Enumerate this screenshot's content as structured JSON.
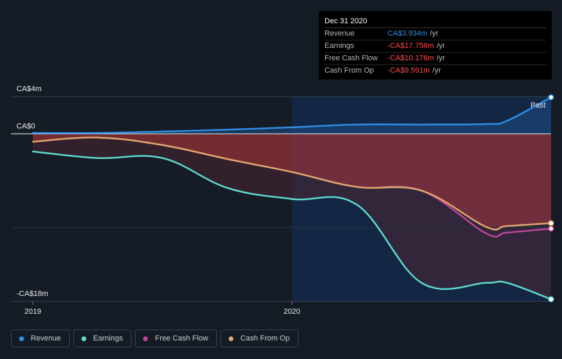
{
  "tooltip": {
    "date": "Dec 31 2020",
    "rows": [
      {
        "label": "Revenue",
        "value": "CA$3.934m",
        "unit": "/yr",
        "color": "#2f8fe6"
      },
      {
        "label": "Earnings",
        "value": "-CA$17.756m",
        "unit": "/yr",
        "color": "#ff4d4d"
      },
      {
        "label": "Free Cash Flow",
        "value": "-CA$10.176m",
        "unit": "/yr",
        "color": "#ff4d4d"
      },
      {
        "label": "Cash From Op",
        "value": "-CA$9.591m",
        "unit": "/yr",
        "color": "#ff4d4d"
      }
    ]
  },
  "past_label": "Past",
  "legend": [
    {
      "label": "Revenue",
      "color": "#2f8fe6"
    },
    {
      "label": "Earnings",
      "color": "#5fdccf"
    },
    {
      "label": "Free Cash Flow",
      "color": "#c2449b"
    },
    {
      "label": "Cash From Op",
      "color": "#e0a86a"
    }
  ],
  "chart_data": {
    "type": "line",
    "title": "",
    "xlabel": "",
    "ylabel": "",
    "y_ticks": [
      {
        "label": "CA$4m",
        "value": 4
      },
      {
        "label": "CA$0",
        "value": 0
      },
      {
        "label": "-CA$18m",
        "value": -18
      }
    ],
    "x_ticks": [
      {
        "label": "2019",
        "value": 2019.0
      },
      {
        "label": "2020",
        "value": 2020.0
      }
    ],
    "ylim": [
      -18,
      4
    ],
    "xlim": [
      2019.0,
      2021.0
    ],
    "past_start": 2020.0,
    "series": [
      {
        "name": "Revenue",
        "color": "#2f8fe6",
        "x": [
          2019.0,
          2019.25,
          2019.5,
          2019.75,
          2020.0,
          2020.25,
          2020.5,
          2020.75,
          2020.83,
          2021.0
        ],
        "y": [
          0.1,
          0.1,
          0.25,
          0.45,
          0.7,
          1.0,
          1.0,
          1.05,
          1.4,
          3.93
        ]
      },
      {
        "name": "Earnings",
        "color": "#5fdccf",
        "x": [
          2019.0,
          2019.25,
          2019.5,
          2019.75,
          2020.0,
          2020.25,
          2020.5,
          2020.75,
          2020.83,
          2021.0
        ],
        "y": [
          -1.9,
          -2.6,
          -2.6,
          -5.8,
          -7.0,
          -7.6,
          -16.0,
          -16.0,
          -16.0,
          -17.76
        ]
      },
      {
        "name": "Free Cash Flow",
        "color": "#c2449b",
        "x": [
          2019.0,
          2019.25,
          2019.5,
          2019.75,
          2020.0,
          2020.25,
          2020.5,
          2020.75,
          2020.83,
          2021.0
        ],
        "y": [
          -0.85,
          -0.4,
          -1.2,
          -2.7,
          -4.1,
          -5.7,
          -6.1,
          -10.7,
          -10.6,
          -10.18
        ]
      },
      {
        "name": "Cash From Op",
        "color": "#e0a86a",
        "x": [
          2019.0,
          2019.25,
          2019.5,
          2019.75,
          2020.0,
          2020.25,
          2020.5,
          2020.75,
          2020.83,
          2021.0
        ],
        "y": [
          -0.85,
          -0.4,
          -1.2,
          -2.7,
          -4.1,
          -5.7,
          -6.1,
          -10.0,
          -9.9,
          -9.59
        ]
      }
    ]
  }
}
